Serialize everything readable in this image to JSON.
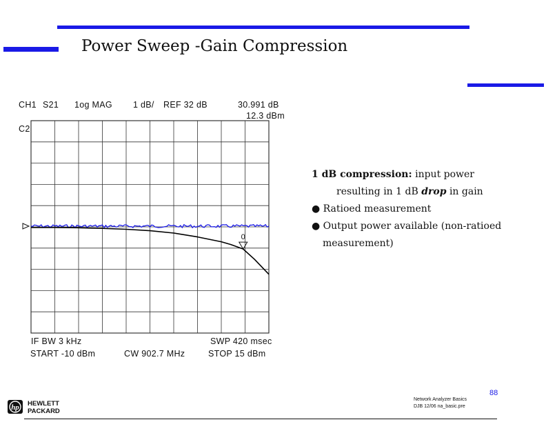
{
  "slide": {
    "title": "Power Sweep -Gain Compression",
    "page_number": "88",
    "footer_line1": "Network Analyzer Basics",
    "footer_line2": "DJB 12/06 na_basic.pre",
    "logo_line1": "HEWLETT",
    "logo_line2": "PACKARD",
    "accent_color": "#1a1ae6"
  },
  "instrument": {
    "ch1_label": "CH1",
    "param": "S21",
    "format": "1og MAG",
    "scale": "1 dB/",
    "ref": "REF 32 dB",
    "marker_value": "30.991 dB",
    "marker_stimulus": "12.3 dBm",
    "ch2_label": "C2",
    "marker_id": "0",
    "if_bw": "IF BW 3 kHz",
    "start": "START -10 dBm",
    "cw": "CW 902.7 MHz",
    "swp": "SWP 420 msec",
    "stop": "STOP 15 dBm"
  },
  "notes": {
    "heading_bold": "1 dB compression:",
    "heading_rest": " input power",
    "line2_pre": "resulting in 1 dB ",
    "line2_em": "drop",
    "line2_post": " in gain",
    "bullet1": "Ratioed measurement",
    "bullet2": "Output power available (non-ratioed",
    "bullet2_cont": "measurement)"
  },
  "chart_data": {
    "type": "line",
    "x_label": "",
    "y_label": "",
    "x_range": [
      -10,
      15
    ],
    "x_units": "dBm",
    "y_scale_per_div": 1,
    "y_reference": 32,
    "y_units": "dB",
    "divisions": {
      "x": 10,
      "y": 10
    },
    "grid": true,
    "reference_division": 5,
    "series": [
      {
        "color": "#1a1ae6",
        "x": [
          -10,
          -5,
          0,
          5,
          10,
          15
        ],
        "y": [
          32.0,
          32.0,
          32.0,
          32.0,
          32.0,
          32.0
        ]
      },
      {
        "color": "#000000",
        "x": [
          -10,
          -7.5,
          -5,
          -2.5,
          0,
          2.5,
          5,
          7.5,
          10,
          11,
          12.3,
          13.5,
          15
        ],
        "y": [
          32.0,
          32.0,
          31.99,
          31.96,
          31.92,
          31.85,
          31.74,
          31.56,
          31.33,
          31.2,
          30.99,
          30.5,
          29.8
        ]
      }
    ],
    "marker": {
      "id": "0",
      "x": 12.3,
      "y": 30.991
    }
  }
}
